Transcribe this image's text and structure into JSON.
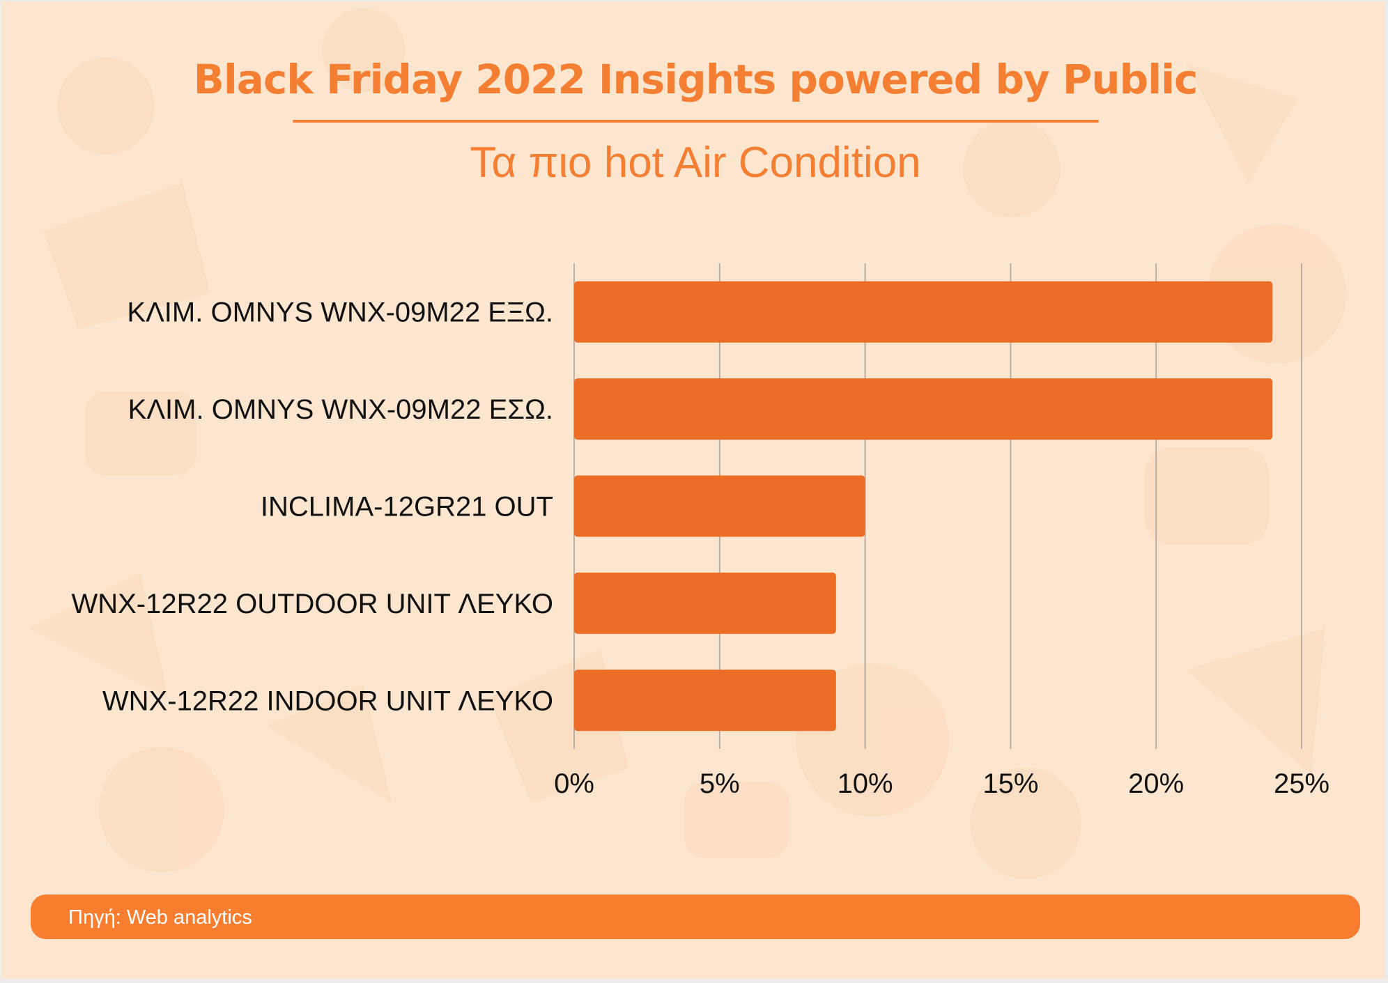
{
  "title": "Black Friday 2022 Insights powered by Public",
  "subtitle": "Τα πιο hot Air Condition",
  "footer": {
    "source": "Πηγή: Web analytics"
  },
  "colors": {
    "background": "#fde6d0",
    "accent": "#f47f32",
    "bar": "#eb6d26",
    "footer": "#f97d2f",
    "grid": "#b9aea3"
  },
  "chart_data": {
    "type": "bar",
    "orientation": "horizontal",
    "categories": [
      "ΚΛΙΜ. OMNYS WNX-09M22 ΕΞΩ.",
      "ΚΛΙΜ. OMNYS WNX-09M22 ΕΣΩ.",
      "INCLIMA-12GR21 OUT",
      "WNX-12R22 OUTDOOR UNIT ΛΕΥΚΟ",
      "WNX-12R22 INDOOR UNIT ΛΕΥΚΟ"
    ],
    "values": [
      24,
      24,
      10,
      9,
      9
    ],
    "unit": "%",
    "xlim": [
      0,
      25
    ],
    "xticks": [
      "0%",
      "5%",
      "10%",
      "15%",
      "20%",
      "25%"
    ],
    "grid": true,
    "legend": "none"
  }
}
